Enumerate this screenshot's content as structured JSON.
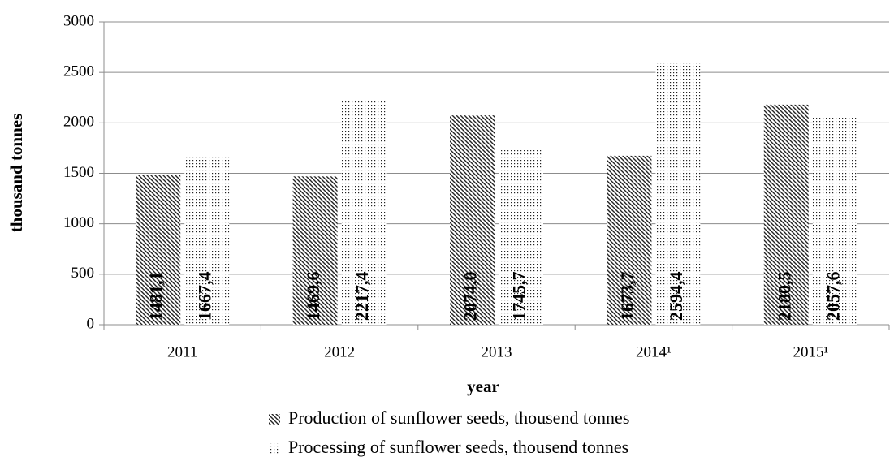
{
  "chart_data": {
    "type": "bar",
    "x_label": "year",
    "y_label": "thousand tonnes",
    "categories": [
      "2011",
      "2012",
      "2013",
      "2014¹",
      "2015¹"
    ],
    "series": [
      {
        "name": "Production of sunflower seeds, thousend tonnes",
        "color": "#222222",
        "values": [
          1481.1,
          1469.6,
          2074.0,
          1673.7,
          2180.5
        ],
        "value_labels": [
          "1481,1",
          "1469,6",
          "2074,0",
          "1673,7",
          "2180,5"
        ]
      },
      {
        "name": "Processing of sunflower seeds, thousend tonnes",
        "color": "#222222",
        "values": [
          1667.4,
          2217.4,
          1745.7,
          2594.4,
          2057.6
        ],
        "value_labels": [
          "1667,4",
          "2217,4",
          "1745,7",
          "2594,4",
          "2057,6"
        ]
      }
    ],
    "ylim": [
      0,
      3000
    ],
    "yticks": [
      0,
      500,
      1000,
      1500,
      2000,
      2500,
      3000
    ],
    "grid": true,
    "legend": "bottom"
  }
}
